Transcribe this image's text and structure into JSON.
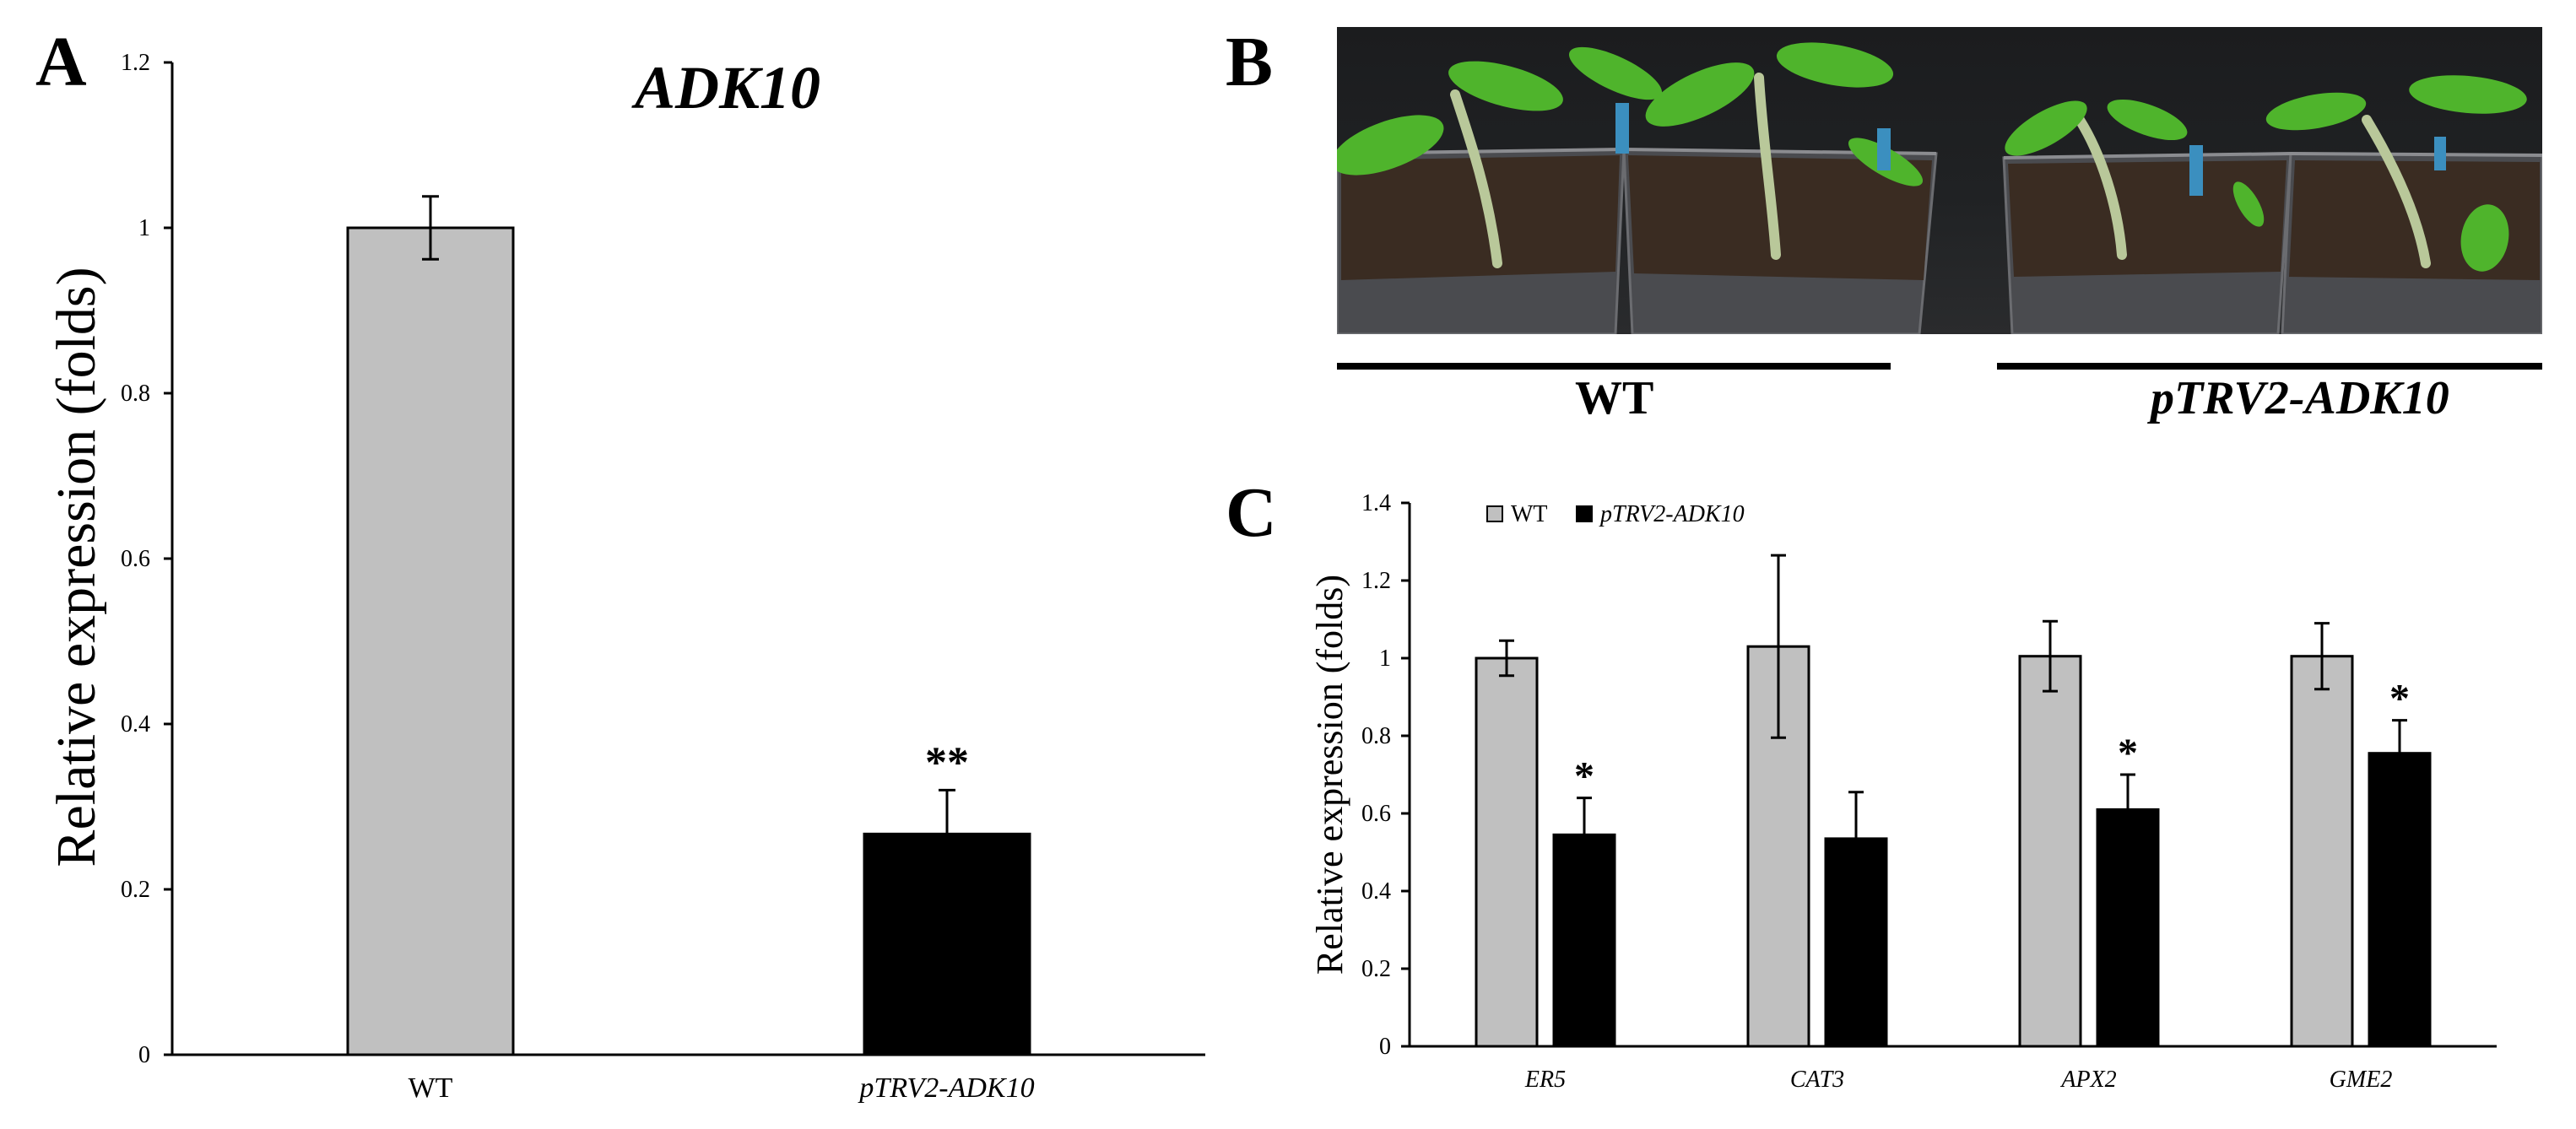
{
  "panels": {
    "a": "A",
    "b": "B",
    "c": "C"
  },
  "photo_labels": {
    "wt": "WT",
    "ptrv2": "pTRV2-ADK10"
  },
  "chart_data": [
    {
      "type": "bar",
      "title": "ADK10",
      "xlabel": "",
      "ylabel": "Relative expression (folds)",
      "categories": [
        "WT",
        "pTRV2-ADK10"
      ],
      "values": [
        1.0,
        0.267
      ],
      "errors": [
        0.038,
        0.053
      ],
      "colors": [
        "#c0c0c0",
        "#000000"
      ],
      "annotations": [
        "",
        "**"
      ],
      "ylim": [
        0,
        1.2
      ],
      "yticks": [
        "0",
        "0.2",
        "0.4",
        "0.6",
        "0.8",
        "1",
        "1.2"
      ],
      "grid": false
    },
    {
      "type": "bar",
      "title": "",
      "xlabel": "",
      "ylabel": "Relative expression (folds)",
      "categories": [
        "ER5",
        "CAT3",
        "APX2",
        "GME2"
      ],
      "series": [
        {
          "name": "WT",
          "color": "#c0c0c0",
          "values": [
            1.0,
            1.03,
            1.005,
            1.005
          ],
          "errors": [
            0.045,
            0.235,
            0.09,
            0.085
          ],
          "annotations": [
            "",
            "",
            "",
            ""
          ]
        },
        {
          "name": "pTRV2-ADK10",
          "color": "#000000",
          "values": [
            0.545,
            0.535,
            0.61,
            0.755
          ],
          "errors": [
            0.095,
            0.12,
            0.09,
            0.085
          ],
          "annotations": [
            "*",
            "",
            "*",
            "*"
          ]
        }
      ],
      "ylim": [
        0,
        1.4
      ],
      "yticks": [
        "0",
        "0.2",
        "0.4",
        "0.6",
        "0.8",
        "1",
        "1.2",
        "1.4"
      ],
      "legend": "top-left",
      "grid": false
    }
  ]
}
